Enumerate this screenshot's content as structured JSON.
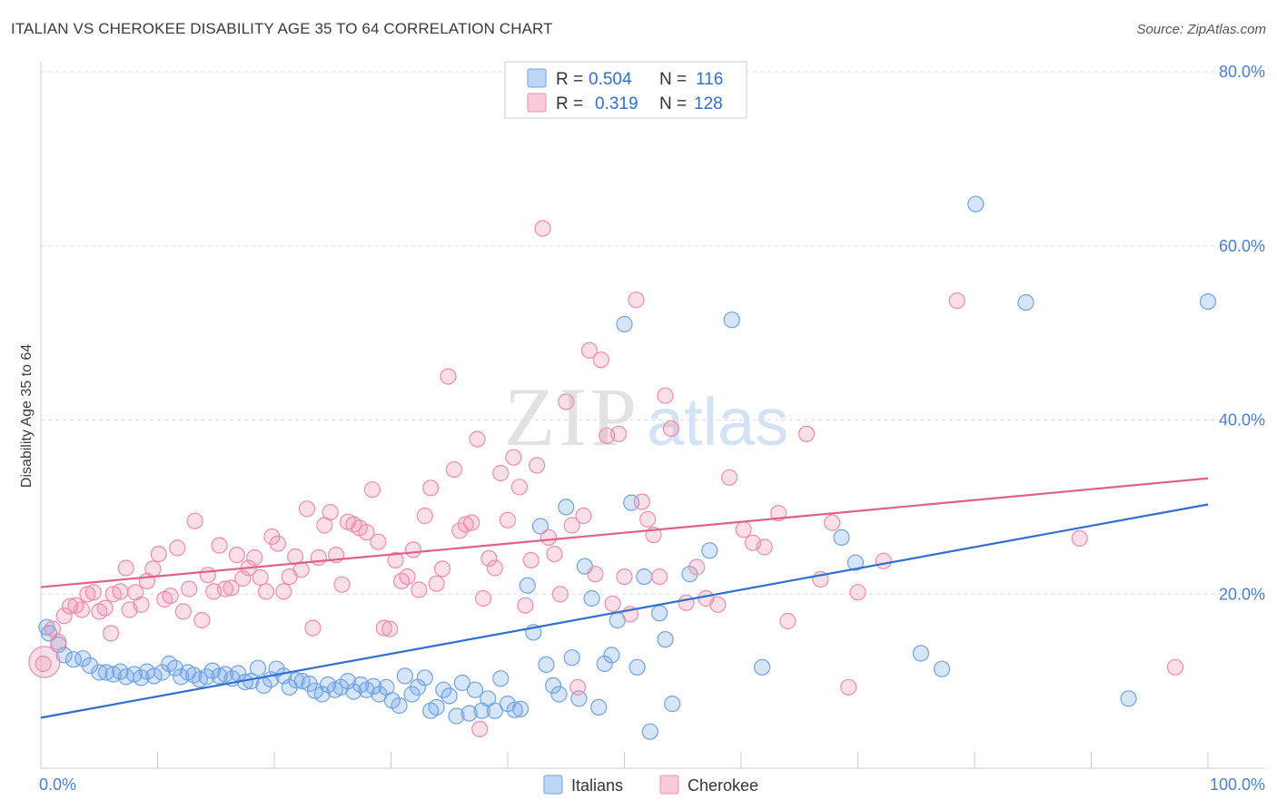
{
  "title": "ITALIAN VS CHEROKEE DISABILITY AGE 35 TO 64 CORRELATION CHART",
  "source": "Source: ZipAtlas.com",
  "watermark": {
    "zip": "ZIP",
    "atlas": "atlas"
  },
  "legend": {
    "rows": [
      {
        "r_label": "R =",
        "r_value": "0.504",
        "n_label": "N =",
        "n_value": "116",
        "color": "#6fa3e8"
      },
      {
        "r_label": "R =",
        "r_value": "0.319",
        "n_label": "N =",
        "n_value": "128",
        "color": "#f08cab"
      }
    ]
  },
  "bottom_legend": [
    "Italians",
    "Cherokee"
  ],
  "chart_data": {
    "type": "scatter",
    "title": "ITALIAN VS CHEROKEE DISABILITY AGE 35 TO 64 CORRELATION CHART",
    "xlabel": "",
    "ylabel": "Disability Age 35 to 64",
    "xlim": [
      0,
      100
    ],
    "ylim": [
      0,
      80
    ],
    "x_tick_labels": [
      "0.0%",
      "100.0%"
    ],
    "y_tick_labels": [
      "20.0%",
      "40.0%",
      "60.0%",
      "80.0%"
    ],
    "y_ticks": [
      20,
      40,
      60,
      80
    ],
    "grid": "horizontal dashed",
    "legend_position": "top-center",
    "series": [
      {
        "name": "Italians",
        "color": "#6fa3e8",
        "line_color": "#2e6fd1",
        "trend": {
          "x": [
            0,
            100
          ],
          "y": [
            5.8,
            30.3
          ]
        },
        "points": [
          [
            0.5,
            16.2
          ],
          [
            0.7,
            15.5
          ],
          [
            1.5,
            14.2
          ],
          [
            2.0,
            13.0
          ],
          [
            2.8,
            12.5
          ],
          [
            3.6,
            12.6
          ],
          [
            4.2,
            11.8
          ],
          [
            5.0,
            11.0
          ],
          [
            5.6,
            11.0
          ],
          [
            6.2,
            10.8
          ],
          [
            6.8,
            11.1
          ],
          [
            7.3,
            10.5
          ],
          [
            8.0,
            10.8
          ],
          [
            8.6,
            10.4
          ],
          [
            9.1,
            11.1
          ],
          [
            9.7,
            10.6
          ],
          [
            10.4,
            11.0
          ],
          [
            11.0,
            12.0
          ],
          [
            11.5,
            11.5
          ],
          [
            12.0,
            10.5
          ],
          [
            12.6,
            11.0
          ],
          [
            13.1,
            10.7
          ],
          [
            13.6,
            10.2
          ],
          [
            14.2,
            10.5
          ],
          [
            14.7,
            11.2
          ],
          [
            15.3,
            10.6
          ],
          [
            15.8,
            10.8
          ],
          [
            16.4,
            10.3
          ],
          [
            16.9,
            10.9
          ],
          [
            17.5,
            9.9
          ],
          [
            18.0,
            10.0
          ],
          [
            18.6,
            11.5
          ],
          [
            19.1,
            9.5
          ],
          [
            19.7,
            10.2
          ],
          [
            20.2,
            11.4
          ],
          [
            20.8,
            10.6
          ],
          [
            21.3,
            9.3
          ],
          [
            21.9,
            10.1
          ],
          [
            22.4,
            10.0
          ],
          [
            23.0,
            9.7
          ],
          [
            23.5,
            8.9
          ],
          [
            24.1,
            8.5
          ],
          [
            24.6,
            9.6
          ],
          [
            25.2,
            9.0
          ],
          [
            25.7,
            9.3
          ],
          [
            26.3,
            10.0
          ],
          [
            26.8,
            8.8
          ],
          [
            27.4,
            9.6
          ],
          [
            27.9,
            9.0
          ],
          [
            28.5,
            9.4
          ],
          [
            29.0,
            8.5
          ],
          [
            29.6,
            9.3
          ],
          [
            30.1,
            7.8
          ],
          [
            30.7,
            7.2
          ],
          [
            31.2,
            10.6
          ],
          [
            31.8,
            8.5
          ],
          [
            32.3,
            9.3
          ],
          [
            32.9,
            10.4
          ],
          [
            33.4,
            6.6
          ],
          [
            33.9,
            7.0
          ],
          [
            34.5,
            9.0
          ],
          [
            35.0,
            8.3
          ],
          [
            35.6,
            6.0
          ],
          [
            36.1,
            9.8
          ],
          [
            36.7,
            6.3
          ],
          [
            37.2,
            9.0
          ],
          [
            37.8,
            6.6
          ],
          [
            38.3,
            8.0
          ],
          [
            38.9,
            6.6
          ],
          [
            39.4,
            10.3
          ],
          [
            40.0,
            7.4
          ],
          [
            40.6,
            6.7
          ],
          [
            41.1,
            6.8
          ],
          [
            41.7,
            21.0
          ],
          [
            42.2,
            15.6
          ],
          [
            42.8,
            27.8
          ],
          [
            43.3,
            11.9
          ],
          [
            43.9,
            9.5
          ],
          [
            44.4,
            8.5
          ],
          [
            45.0,
            30.0
          ],
          [
            45.5,
            12.7
          ],
          [
            46.1,
            8.0
          ],
          [
            46.6,
            23.2
          ],
          [
            47.2,
            19.5
          ],
          [
            47.8,
            7.0
          ],
          [
            48.3,
            12.0
          ],
          [
            48.9,
            13.0
          ],
          [
            49.4,
            17.0
          ],
          [
            50.0,
            51.0
          ],
          [
            50.6,
            30.5
          ],
          [
            51.1,
            11.6
          ],
          [
            51.7,
            22.0
          ],
          [
            52.2,
            4.2
          ],
          [
            53.0,
            17.8
          ],
          [
            53.5,
            14.8
          ],
          [
            54.1,
            7.4
          ],
          [
            55.6,
            22.3
          ],
          [
            57.3,
            25.0
          ],
          [
            59.2,
            51.5
          ],
          [
            61.8,
            11.6
          ],
          [
            68.6,
            26.5
          ],
          [
            69.8,
            23.6
          ],
          [
            75.4,
            13.2
          ],
          [
            77.2,
            11.4
          ],
          [
            80.1,
            64.8
          ],
          [
            84.4,
            53.5
          ],
          [
            93.2,
            8.0
          ],
          [
            100.0,
            53.6
          ]
        ]
      },
      {
        "name": "Cherokee",
        "color": "#f08cab",
        "line_color": "#e0608b",
        "trend": {
          "x": [
            0,
            100
          ],
          "y": [
            20.8,
            33.3
          ]
        },
        "points": [
          [
            0.2,
            12.0
          ],
          [
            1.0,
            16.0
          ],
          [
            1.5,
            14.5
          ],
          [
            2.0,
            17.5
          ],
          [
            2.5,
            18.6
          ],
          [
            3.0,
            18.7
          ],
          [
            3.5,
            18.2
          ],
          [
            4.0,
            20.0
          ],
          [
            4.5,
            20.2
          ],
          [
            5.0,
            18.0
          ],
          [
            5.5,
            18.4
          ],
          [
            6.0,
            15.5
          ],
          [
            6.2,
            20.0
          ],
          [
            6.8,
            20.3
          ],
          [
            7.3,
            23.0
          ],
          [
            7.6,
            18.2
          ],
          [
            8.1,
            20.2
          ],
          [
            8.6,
            18.8
          ],
          [
            9.1,
            21.5
          ],
          [
            9.6,
            22.9
          ],
          [
            10.1,
            24.6
          ],
          [
            10.6,
            19.4
          ],
          [
            11.1,
            19.8
          ],
          [
            11.7,
            25.3
          ],
          [
            12.2,
            18.0
          ],
          [
            12.7,
            20.6
          ],
          [
            13.2,
            28.4
          ],
          [
            13.8,
            17.0
          ],
          [
            14.3,
            22.2
          ],
          [
            14.8,
            20.3
          ],
          [
            15.3,
            25.6
          ],
          [
            15.8,
            20.6
          ],
          [
            16.3,
            20.7
          ],
          [
            16.8,
            24.5
          ],
          [
            17.3,
            21.8
          ],
          [
            17.8,
            23.0
          ],
          [
            18.3,
            24.2
          ],
          [
            18.8,
            21.9
          ],
          [
            19.3,
            20.3
          ],
          [
            19.8,
            26.6
          ],
          [
            20.3,
            25.8
          ],
          [
            20.8,
            20.3
          ],
          [
            21.3,
            22.0
          ],
          [
            21.8,
            24.3
          ],
          [
            22.3,
            22.8
          ],
          [
            22.8,
            29.8
          ],
          [
            23.3,
            16.1
          ],
          [
            23.8,
            24.2
          ],
          [
            24.3,
            27.9
          ],
          [
            24.8,
            29.4
          ],
          [
            25.3,
            24.5
          ],
          [
            25.8,
            21.1
          ],
          [
            26.3,
            28.3
          ],
          [
            26.8,
            28.0
          ],
          [
            27.3,
            27.6
          ],
          [
            27.9,
            27.1
          ],
          [
            28.4,
            32.0
          ],
          [
            28.9,
            26.0
          ],
          [
            29.4,
            16.1
          ],
          [
            29.9,
            16.0
          ],
          [
            30.4,
            23.9
          ],
          [
            30.9,
            21.5
          ],
          [
            31.4,
            22.0
          ],
          [
            31.9,
            25.1
          ],
          [
            32.4,
            20.5
          ],
          [
            32.9,
            29.0
          ],
          [
            33.4,
            32.2
          ],
          [
            33.9,
            21.2
          ],
          [
            34.4,
            22.9
          ],
          [
            34.9,
            45.0
          ],
          [
            35.4,
            34.3
          ],
          [
            35.9,
            27.3
          ],
          [
            36.4,
            28.0
          ],
          [
            36.9,
            28.2
          ],
          [
            37.4,
            37.8
          ],
          [
            37.9,
            19.5
          ],
          [
            38.4,
            24.1
          ],
          [
            38.9,
            23.0
          ],
          [
            39.4,
            33.9
          ],
          [
            40.0,
            28.5
          ],
          [
            40.5,
            35.7
          ],
          [
            41.0,
            32.3
          ],
          [
            41.5,
            18.7
          ],
          [
            42.0,
            23.9
          ],
          [
            42.5,
            34.8
          ],
          [
            43.0,
            62.0
          ],
          [
            43.5,
            26.5
          ],
          [
            44.0,
            24.6
          ],
          [
            44.5,
            20.0
          ],
          [
            45.0,
            42.1
          ],
          [
            45.5,
            27.9
          ],
          [
            46.0,
            9.3
          ],
          [
            46.5,
            29.0
          ],
          [
            47.0,
            48.0
          ],
          [
            47.5,
            22.3
          ],
          [
            48.0,
            46.9
          ],
          [
            48.5,
            38.2
          ],
          [
            49.0,
            18.9
          ],
          [
            49.5,
            38.4
          ],
          [
            50.0,
            22.0
          ],
          [
            50.5,
            17.7
          ],
          [
            51.0,
            53.8
          ],
          [
            51.5,
            30.6
          ],
          [
            52.0,
            28.6
          ],
          [
            52.5,
            26.8
          ],
          [
            53.0,
            22.0
          ],
          [
            53.5,
            42.8
          ],
          [
            54.0,
            39.0
          ],
          [
            55.3,
            19.0
          ],
          [
            56.2,
            23.1
          ],
          [
            57.0,
            19.5
          ],
          [
            58.0,
            18.8
          ],
          [
            59.0,
            33.4
          ],
          [
            60.2,
            27.4
          ],
          [
            61.0,
            25.9
          ],
          [
            62.0,
            25.4
          ],
          [
            63.2,
            29.3
          ],
          [
            64.0,
            16.9
          ],
          [
            65.6,
            38.4
          ],
          [
            66.8,
            21.7
          ],
          [
            67.8,
            28.2
          ],
          [
            69.2,
            9.3
          ],
          [
            70.0,
            20.2
          ],
          [
            72.2,
            23.8
          ],
          [
            78.5,
            53.7
          ],
          [
            89.0,
            26.4
          ],
          [
            97.2,
            11.6
          ],
          [
            37.6,
            4.5
          ]
        ]
      }
    ]
  }
}
